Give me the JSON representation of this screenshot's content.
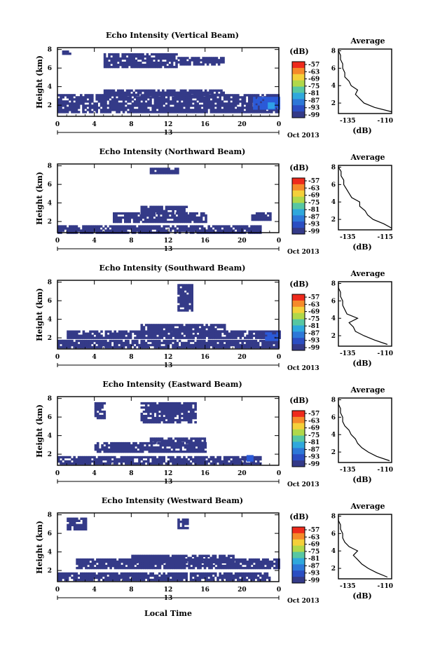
{
  "panels": [
    {
      "title": "Echo Intensity (Vertical Beam)",
      "avg_xticks": [
        "-135",
        "-110"
      ]
    },
    {
      "title": "Echo Intensity (Northward Beam)",
      "avg_xticks": [
        "-135",
        "-115"
      ]
    },
    {
      "title": "Echo Intensity (Southward Beam)",
      "avg_xticks": [
        "-135",
        "-110"
      ]
    },
    {
      "title": "Echo Intensity (Eastward Beam)",
      "avg_xticks": [
        "-135",
        "-110"
      ]
    },
    {
      "title": "Echo Intensity (Westward Beam)",
      "avg_xticks": [
        "-135",
        "-110"
      ]
    }
  ],
  "common": {
    "ylabel": "Height (km)",
    "yticks": [
      "8",
      "6",
      "4",
      "2"
    ],
    "xticks": [
      "0",
      "4",
      "8",
      "12",
      "16",
      "20",
      "0"
    ],
    "day": "13",
    "month_label": "Oct 2013",
    "xlabel": "Local Time",
    "cbar_unit": "(dB)",
    "cbar_ticks": [
      "-57",
      "-63",
      "-69",
      "-75",
      "-81",
      "-87",
      "-93",
      "-99"
    ],
    "avg_title": "Average",
    "avg_unit": "(dB)",
    "avg_yticks": [
      "8",
      "6",
      "4",
      "2"
    ]
  },
  "colors": {
    "colorbar": [
      "#ee2a1c",
      "#f58a2a",
      "#f4d03a",
      "#b0d84a",
      "#57c7a2",
      "#2fa8dc",
      "#2d78d8",
      "#2b4ec2",
      "#343a88"
    ],
    "echo": "#343a88",
    "strong_echo": "#2b5ad8",
    "strongest_echo": "#2fa0e8"
  },
  "chart_data": {
    "type": "heatmap",
    "x_range_hours": [
      0,
      24
    ],
    "y_range_km": [
      0.8,
      8.2
    ],
    "colorbar_range_db": [
      -99,
      -57
    ],
    "echo_regions": [
      [
        [
          0,
          24,
          1.2,
          3.2
        ],
        [
          5,
          18,
          3.2,
          3.7
        ],
        [
          5,
          13,
          6.2,
          7.6
        ],
        [
          13,
          18,
          6.4,
          7.2
        ],
        [
          0.5,
          1.5,
          7.5,
          7.9
        ]
      ],
      [
        [
          0,
          22,
          0.9,
          1.6
        ],
        [
          6,
          16,
          2.0,
          3.0
        ],
        [
          9,
          14,
          2.8,
          3.7
        ],
        [
          21,
          23,
          2.2,
          3.0
        ],
        [
          10,
          13,
          7.2,
          7.8
        ]
      ],
      [
        [
          0,
          24,
          1.1,
          1.8
        ],
        [
          1,
          24,
          2.0,
          2.8
        ],
        [
          9,
          18,
          2.8,
          3.5
        ],
        [
          13,
          14.5,
          5.0,
          7.8
        ],
        [
          22,
          24,
          2.0,
          2.8
        ]
      ],
      [
        [
          0,
          22,
          1.0,
          1.8
        ],
        [
          4,
          16,
          2.2,
          3.3
        ],
        [
          10,
          16,
          3.3,
          3.8
        ],
        [
          9,
          15,
          5.5,
          7.6
        ],
        [
          4,
          5,
          6.0,
          7.6
        ]
      ],
      [
        [
          0,
          23,
          1.1,
          1.8
        ],
        [
          2,
          24,
          2.3,
          3.3
        ],
        [
          8,
          19,
          3.0,
          3.7
        ],
        [
          13,
          14,
          6.5,
          7.6
        ],
        [
          1,
          3,
          6.4,
          7.7
        ]
      ]
    ],
    "strong_echo_regions": [
      [
        [
          21.2,
          24,
          1.6,
          2.9
        ]
      ],
      [],
      [
        [
          22.5,
          23.8,
          1.7,
          2.6
        ]
      ],
      [
        [
          20.5,
          21.2,
          1.4,
          1.9
        ]
      ],
      []
    ],
    "strongest_echo_regions": [
      [
        [
          22.8,
          23.5,
          1.7,
          2.3
        ]
      ],
      [],
      [],
      [],
      []
    ],
    "average_profiles": [
      {
        "xlim": [
          -135,
          -110
        ],
        "height_km": [
          1,
          1.5,
          2,
          2.5,
          3,
          3.5,
          4,
          4.5,
          5,
          5.5,
          6,
          6.5,
          7,
          7.5,
          8
        ],
        "db": [
          -110,
          -118,
          -123,
          -125,
          -127,
          -126,
          -129,
          -130,
          -132,
          -132,
          -133,
          -133,
          -134,
          -134,
          -135
        ]
      },
      {
        "xlim": [
          -135,
          -115
        ],
        "height_km": [
          1,
          1.5,
          2,
          2.5,
          3,
          3.5,
          4,
          4.5,
          5,
          5.5,
          6,
          6.5,
          7,
          7.5,
          8
        ],
        "db": [
          -115,
          -118,
          -122,
          -124,
          -125,
          -127,
          -127,
          -130,
          -131,
          -132,
          -133,
          -133,
          -134,
          -134,
          -135
        ]
      },
      {
        "xlim": [
          -135,
          -110
        ],
        "height_km": [
          1,
          1.5,
          2,
          2.5,
          3,
          3.5,
          4,
          4.5,
          5,
          5.5,
          6,
          6.5,
          7,
          7.5,
          8
        ],
        "db": [
          -112,
          -118,
          -123,
          -127,
          -128,
          -130,
          -126,
          -131,
          -132,
          -133,
          -133,
          -134,
          -134,
          -135,
          -135
        ]
      },
      {
        "xlim": [
          -135,
          -110
        ],
        "height_km": [
          1,
          1.5,
          2,
          2.5,
          3,
          3.5,
          4,
          4.5,
          5,
          5.5,
          6,
          6.5,
          7,
          7.5,
          8
        ],
        "db": [
          -111,
          -117,
          -121,
          -124,
          -126,
          -127,
          -129,
          -130,
          -132,
          -133,
          -133,
          -134,
          -134,
          -135,
          -135
        ]
      },
      {
        "xlim": [
          -135,
          -110
        ],
        "height_km": [
          1,
          1.5,
          2,
          2.5,
          3,
          3.5,
          4,
          4.5,
          5,
          5.5,
          6,
          6.5,
          7,
          7.5,
          8
        ],
        "db": [
          -112,
          -117,
          -121,
          -124,
          -126,
          -128,
          -126,
          -130,
          -132,
          -133,
          -133,
          -134,
          -134,
          -135,
          -135
        ]
      }
    ]
  }
}
